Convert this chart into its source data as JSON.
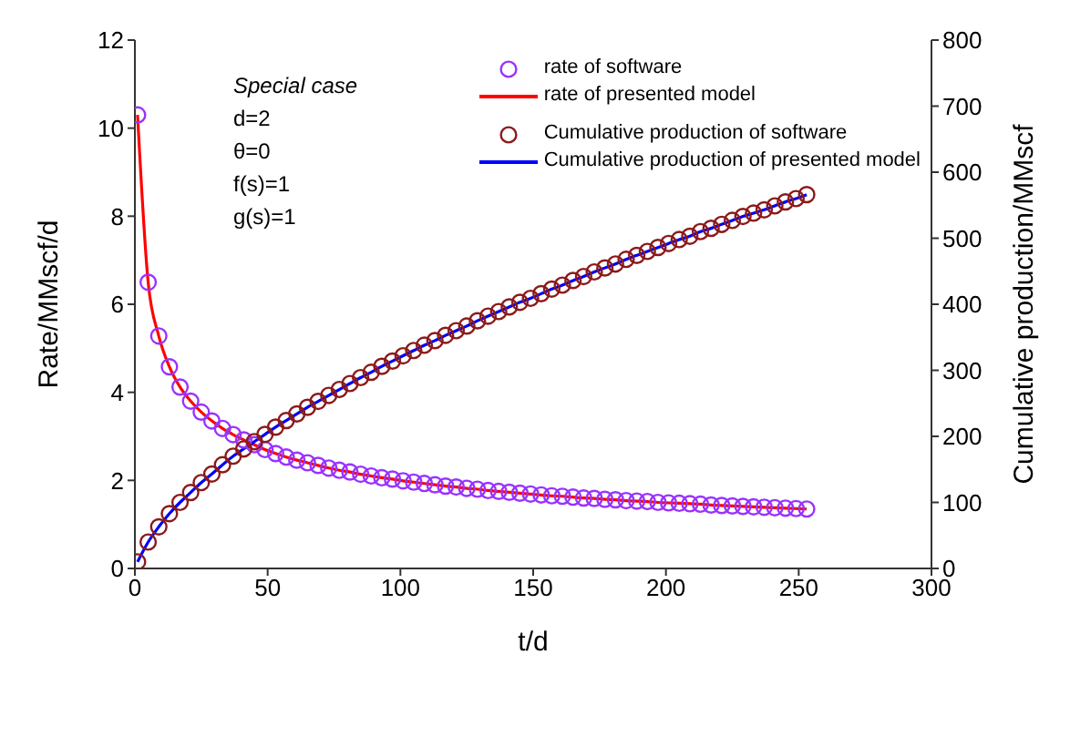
{
  "chart_data": {
    "type": "scatter",
    "xlabel": "t/d",
    "ylabel": "Rate/MMscf/d",
    "y2label": "Cumulative production/MMscf",
    "x": [
      1,
      5,
      9,
      13,
      17,
      21,
      25,
      29,
      33,
      37,
      41,
      45,
      49,
      53,
      57,
      61,
      65,
      69,
      73,
      77,
      81,
      85,
      89,
      93,
      97,
      101,
      105,
      109,
      113,
      117,
      121,
      125,
      129,
      133,
      137,
      141,
      145,
      149,
      153,
      157,
      161,
      165,
      169,
      173,
      177,
      181,
      185,
      189,
      193,
      197,
      201,
      205,
      209,
      213,
      217,
      221,
      225,
      229,
      233,
      237,
      241,
      245,
      249,
      253
    ],
    "series": [
      {
        "name": "rate of software",
        "type": "scatter",
        "marker": "circle",
        "color": "#9933ff",
        "values": [
          10.3,
          6.5,
          5.28,
          4.58,
          4.12,
          3.8,
          3.55,
          3.35,
          3.18,
          3.04,
          2.92,
          2.81,
          2.7,
          2.61,
          2.53,
          2.46,
          2.4,
          2.34,
          2.28,
          2.23,
          2.19,
          2.14,
          2.1,
          2.06,
          2.03,
          1.99,
          1.96,
          1.93,
          1.9,
          1.87,
          1.85,
          1.82,
          1.8,
          1.77,
          1.75,
          1.73,
          1.71,
          1.69,
          1.67,
          1.65,
          1.64,
          1.62,
          1.6,
          1.59,
          1.57,
          1.56,
          1.54,
          1.53,
          1.52,
          1.5,
          1.49,
          1.48,
          1.47,
          1.46,
          1.44,
          1.43,
          1.42,
          1.41,
          1.4,
          1.39,
          1.38,
          1.37,
          1.36,
          1.35
        ]
      },
      {
        "name": "rate of presented model",
        "type": "line",
        "marker": "none",
        "color": "#ff0000",
        "values": [
          10.3,
          6.5,
          5.28,
          4.58,
          4.12,
          3.8,
          3.55,
          3.35,
          3.18,
          3.04,
          2.92,
          2.81,
          2.7,
          2.61,
          2.53,
          2.46,
          2.4,
          2.34,
          2.28,
          2.23,
          2.19,
          2.14,
          2.1,
          2.06,
          2.03,
          1.99,
          1.96,
          1.93,
          1.9,
          1.87,
          1.85,
          1.82,
          1.8,
          1.77,
          1.75,
          1.73,
          1.71,
          1.69,
          1.67,
          1.65,
          1.64,
          1.62,
          1.6,
          1.59,
          1.57,
          1.56,
          1.54,
          1.53,
          1.52,
          1.5,
          1.49,
          1.48,
          1.47,
          1.46,
          1.44,
          1.43,
          1.42,
          1.41,
          1.4,
          1.39,
          1.38,
          1.37,
          1.36,
          1.35
        ]
      },
      {
        "name": "Cumulative production of software",
        "type": "scatter",
        "marker": "circle",
        "axis": "y2",
        "color": "#8b1a1a",
        "values": [
          10,
          40,
          63,
          83,
          100,
          115,
          130,
          143,
          157,
          170,
          181,
          192,
          203,
          214,
          224,
          234,
          244,
          253,
          262,
          271,
          280,
          289,
          297,
          306,
          314,
          322,
          330,
          338,
          345,
          353,
          360,
          367,
          375,
          382,
          389,
          396,
          403,
          409,
          416,
          423,
          429,
          436,
          442,
          449,
          455,
          461,
          468,
          474,
          480,
          486,
          492,
          498,
          503,
          510,
          515,
          521,
          527,
          533,
          538,
          543,
          549,
          555,
          560,
          566
        ]
      },
      {
        "name": "Cumulative production of presented model",
        "type": "line",
        "marker": "none",
        "axis": "y2",
        "color": "#0000ff",
        "values": [
          10,
          40,
          63,
          83,
          100,
          115,
          130,
          143,
          157,
          170,
          181,
          192,
          203,
          214,
          224,
          234,
          244,
          253,
          262,
          271,
          280,
          289,
          297,
          306,
          314,
          322,
          330,
          338,
          345,
          353,
          360,
          367,
          375,
          382,
          389,
          396,
          403,
          409,
          416,
          423,
          429,
          436,
          442,
          449,
          455,
          461,
          468,
          474,
          480,
          486,
          492,
          498,
          503,
          510,
          515,
          521,
          527,
          533,
          538,
          543,
          549,
          555,
          560,
          566
        ]
      }
    ],
    "xlim": [
      0,
      300
    ],
    "xticks": [
      0,
      50,
      100,
      150,
      200,
      250,
      300
    ],
    "ylim": [
      0,
      12
    ],
    "yticks": [
      0,
      2,
      4,
      6,
      8,
      10,
      12
    ],
    "y2lim": [
      0,
      800
    ],
    "y2ticks": [
      0,
      100,
      200,
      300,
      400,
      500,
      600,
      700,
      800
    ],
    "grid": false,
    "legend": "top right",
    "line_style": "solid",
    "annotations": [
      "Special case",
      "d=2",
      "θ=0",
      "f(s)=1",
      "g(s)=1"
    ]
  }
}
